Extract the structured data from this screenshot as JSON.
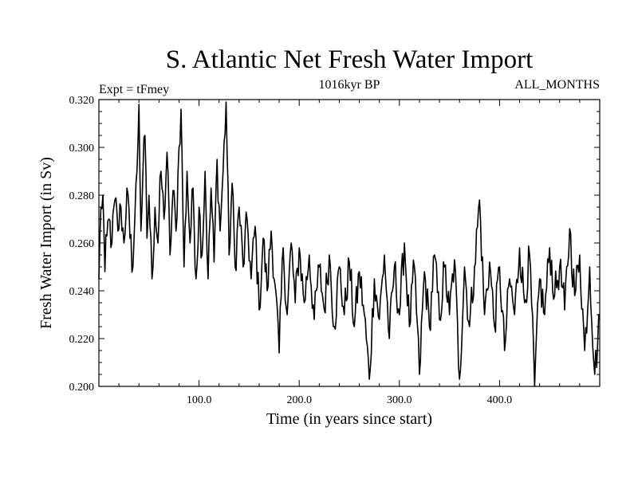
{
  "chart_data": {
    "type": "line",
    "title": "S. Atlantic Net Fresh Water Import",
    "subtitle_left": "Expt = tFmey",
    "subtitle_center": "1016kyr BP",
    "subtitle_right": "ALL_MONTHS",
    "xlabel": "Time (in years since start)",
    "ylabel": "Fresh Water Import (in Sv)",
    "xlim": [
      0,
      500
    ],
    "ylim": [
      0.2,
      0.32
    ],
    "xticks": [
      100,
      200,
      300,
      400
    ],
    "xtick_labels": [
      "100.0",
      "200.0",
      "300.0",
      "400.0"
    ],
    "yticks": [
      0.2,
      0.22,
      0.24,
      0.26,
      0.28,
      0.3,
      0.32
    ],
    "ytick_labels": [
      "0.200",
      "0.220",
      "0.240",
      "0.260",
      "0.280",
      "0.300",
      "0.320"
    ],
    "grid": false,
    "series": [
      {
        "name": "Fresh Water Import",
        "color": "#000000",
        "sample_interval_years": 1,
        "anchor_points": [
          [
            0,
            0.245
          ],
          [
            2,
            0.275
          ],
          [
            4,
            0.28
          ],
          [
            6,
            0.248
          ],
          [
            8,
            0.263
          ],
          [
            10,
            0.27
          ],
          [
            13,
            0.26
          ],
          [
            16,
            0.278
          ],
          [
            19,
            0.265
          ],
          [
            22,
            0.275
          ],
          [
            25,
            0.26
          ],
          [
            28,
            0.283
          ],
          [
            31,
            0.262
          ],
          [
            34,
            0.25
          ],
          [
            36,
            0.272
          ],
          [
            38,
            0.29
          ],
          [
            40,
            0.318
          ],
          [
            42,
            0.265
          ],
          [
            44,
            0.29
          ],
          [
            46,
            0.305
          ],
          [
            48,
            0.262
          ],
          [
            50,
            0.28
          ],
          [
            53,
            0.245
          ],
          [
            56,
            0.275
          ],
          [
            59,
            0.26
          ],
          [
            62,
            0.29
          ],
          [
            65,
            0.27
          ],
          [
            68,
            0.298
          ],
          [
            71,
            0.255
          ],
          [
            74,
            0.282
          ],
          [
            77,
            0.265
          ],
          [
            80,
            0.3
          ],
          [
            82,
            0.316
          ],
          [
            85,
            0.25
          ],
          [
            88,
            0.29
          ],
          [
            91,
            0.26
          ],
          [
            94,
            0.283
          ],
          [
            97,
            0.245
          ],
          [
            100,
            0.275
          ],
          [
            103,
            0.255
          ],
          [
            106,
            0.29
          ],
          [
            109,
            0.245
          ],
          [
            112,
            0.283
          ],
          [
            115,
            0.252
          ],
          [
            118,
            0.295
          ],
          [
            121,
            0.265
          ],
          [
            124,
            0.29
          ],
          [
            127,
            0.319
          ],
          [
            130,
            0.255
          ],
          [
            133,
            0.285
          ],
          [
            136,
            0.25
          ],
          [
            140,
            0.275
          ],
          [
            144,
            0.25
          ],
          [
            148,
            0.27
          ],
          [
            152,
            0.245
          ],
          [
            156,
            0.267
          ],
          [
            160,
            0.232
          ],
          [
            164,
            0.262
          ],
          [
            168,
            0.24
          ],
          [
            172,
            0.265
          ],
          [
            176,
            0.242
          ],
          [
            180,
            0.214
          ],
          [
            184,
            0.258
          ],
          [
            188,
            0.23
          ],
          [
            192,
            0.26
          ],
          [
            196,
            0.235
          ],
          [
            200,
            0.258
          ],
          [
            205,
            0.235
          ],
          [
            210,
            0.255
          ],
          [
            215,
            0.228
          ],
          [
            220,
            0.25
          ],
          [
            225,
            0.232
          ],
          [
            230,
            0.255
          ],
          [
            235,
            0.225
          ],
          [
            240,
            0.25
          ],
          [
            245,
            0.23
          ],
          [
            250,
            0.252
          ],
          [
            255,
            0.225
          ],
          [
            260,
            0.248
          ],
          [
            265,
            0.23
          ],
          [
            270,
            0.203
          ],
          [
            275,
            0.245
          ],
          [
            280,
            0.228
          ],
          [
            285,
            0.255
          ],
          [
            290,
            0.22
          ],
          [
            295,
            0.25
          ],
          [
            300,
            0.23
          ],
          [
            305,
            0.26
          ],
          [
            310,
            0.225
          ],
          [
            315,
            0.25
          ],
          [
            320,
            0.205
          ],
          [
            325,
            0.248
          ],
          [
            330,
            0.225
          ],
          [
            335,
            0.255
          ],
          [
            340,
            0.228
          ],
          [
            345,
            0.25
          ],
          [
            350,
            0.23
          ],
          [
            355,
            0.253
          ],
          [
            360,
            0.203
          ],
          [
            365,
            0.25
          ],
          [
            370,
            0.225
          ],
          [
            375,
            0.25
          ],
          [
            380,
            0.278
          ],
          [
            385,
            0.23
          ],
          [
            390,
            0.252
          ],
          [
            395,
            0.225
          ],
          [
            400,
            0.25
          ],
          [
            405,
            0.215
          ],
          [
            410,
            0.245
          ],
          [
            415,
            0.23
          ],
          [
            420,
            0.258
          ],
          [
            425,
            0.235
          ],
          [
            430,
            0.255
          ],
          [
            435,
            0.2
          ],
          [
            440,
            0.245
          ],
          [
            445,
            0.23
          ],
          [
            450,
            0.258
          ],
          [
            455,
            0.238
          ],
          [
            460,
            0.25
          ],
          [
            465,
            0.232
          ],
          [
            470,
            0.266
          ],
          [
            475,
            0.238
          ],
          [
            480,
            0.255
          ],
          [
            485,
            0.215
          ],
          [
            490,
            0.25
          ],
          [
            495,
            0.205
          ],
          [
            500,
            0.228
          ]
        ]
      }
    ]
  }
}
